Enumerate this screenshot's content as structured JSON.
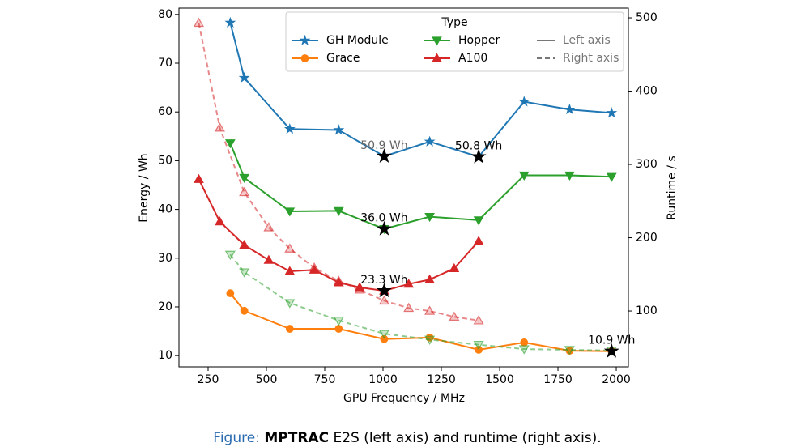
{
  "chart_data": {
    "type": "line",
    "x_label": "GPU Frequency / MHz",
    "y_label": "Energy / Wh",
    "y2_label": "Runtime / s",
    "xlim": [
      125,
      2052
    ],
    "xticks": [
      250,
      500,
      750,
      1000,
      1250,
      1500,
      1750,
      2000
    ],
    "ylim": [
      7.7,
      81.3
    ],
    "yticks": [
      10,
      20,
      30,
      40,
      50,
      60,
      70,
      80
    ],
    "y2lim": [
      23.8,
      513.3
    ],
    "y2ticks": [
      100,
      200,
      300,
      400,
      500
    ],
    "grid": false,
    "legend_loc": "upper right",
    "legend_title": "Type",
    "legend_styles": [
      {
        "label": "Left axis",
        "style": "solid"
      },
      {
        "label": "Right axis",
        "style": "dashed"
      }
    ],
    "series": [
      {
        "name": "GH Module",
        "color": "#1f77b4",
        "marker": "star",
        "style": "solid",
        "axis": "y",
        "x": [
          345,
          405,
          600,
          810,
          1005,
          1200,
          1410,
          1605,
          1800,
          1980
        ],
        "values": [
          78.3,
          67,
          56.5,
          56.3,
          50.9,
          53.9,
          50.8,
          62.1,
          60.5,
          59.8
        ]
      },
      {
        "name": "Grace",
        "color": "#ff7f0e",
        "marker": "circle",
        "style": "solid",
        "axis": "y",
        "x": [
          345,
          405,
          600,
          810,
          1005,
          1200,
          1410,
          1605,
          1800,
          1980
        ],
        "values": [
          22.8,
          19.2,
          15.5,
          15.5,
          13.4,
          13.7,
          11.2,
          12.7,
          11,
          10.9
        ]
      },
      {
        "name": "Hopper",
        "color": "#2ca02c",
        "marker": "triangle-down",
        "style": "solid",
        "axis": "y",
        "x": [
          345,
          405,
          600,
          810,
          1005,
          1200,
          1410,
          1605,
          1800,
          1980
        ],
        "values": [
          53.6,
          46.5,
          39.6,
          39.7,
          36.0,
          38.5,
          37.8,
          47,
          47,
          46.7
        ]
      },
      {
        "name": "A100",
        "color": "#d62728",
        "marker": "triangle-up",
        "style": "solid",
        "axis": "y",
        "x": [
          210,
          300,
          405,
          510,
          600,
          705,
          810,
          900,
          1005,
          1110,
          1200,
          1305,
          1410
        ],
        "values": [
          46.2,
          37.5,
          32.7,
          29.6,
          27.3,
          27.6,
          25,
          24,
          23.3,
          24.7,
          25.6,
          27.9,
          33.5
        ]
      },
      {
        "color": "#d62728",
        "marker": "triangle-up",
        "style": "dashed",
        "axis": "y2",
        "x": [
          210,
          300,
          405,
          510,
          600,
          705,
          810,
          900,
          1005,
          1110,
          1200,
          1305,
          1410
        ],
        "values": [
          493,
          350,
          262,
          214,
          185,
          159,
          141,
          129,
          114,
          104,
          100,
          92,
          87
        ]
      },
      {
        "color": "#2ca02c",
        "marker": "triangle-down",
        "style": "dashed",
        "axis": "y2",
        "x": [
          345,
          405,
          600,
          810,
          1005,
          1200,
          1410,
          1605,
          1800,
          1980
        ],
        "values": [
          177,
          153,
          111,
          87,
          69,
          61,
          54,
          48,
          47,
          46
        ]
      }
    ],
    "annotations": [
      {
        "text": "50.9 Wh",
        "x": 1005,
        "y": 50.9,
        "color": "#666666"
      },
      {
        "text": "50.8 Wh",
        "x": 1410,
        "y": 50.8,
        "color": "#000000"
      },
      {
        "text": "36.0 Wh",
        "x": 1005,
        "y": 36.0,
        "color": "#000000"
      },
      {
        "text": "23.3 Wh",
        "x": 1005,
        "y": 23.3,
        "color": "#000000"
      },
      {
        "text": "10.9 Wh",
        "x": 1980,
        "y": 10.9,
        "color": "#000000"
      }
    ],
    "caption": {
      "prefix": "Figure:",
      "bold": "MPTRAC",
      "text": "E2S (left axis) and runtime (right axis)."
    }
  }
}
